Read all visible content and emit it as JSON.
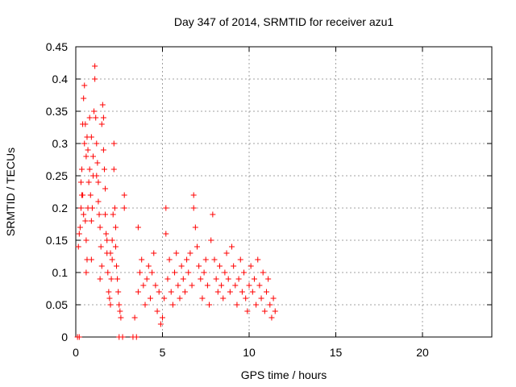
{
  "chart_data": {
    "type": "scatter",
    "title": "Day 347 of 2014, SRMTID for receiver azu1",
    "xlabel": "GPS time / hours",
    "ylabel": "SRMTID / TECUs",
    "xlim": [
      0,
      24
    ],
    "ylim": [
      0,
      0.45
    ],
    "xticks": [
      0,
      5,
      10,
      15,
      20
    ],
    "yticks": [
      0,
      0.05,
      0.1,
      0.15,
      0.2,
      0.25,
      0.3,
      0.35,
      0.4,
      0.45
    ],
    "xtick_labels": [
      "0",
      "5",
      "10",
      "15",
      "20"
    ],
    "ytick_labels": [
      "0",
      "0.05",
      "0.1",
      "0.15",
      "0.2",
      "0.25",
      "0.3",
      "0.35",
      "0.4",
      "0.45"
    ],
    "grid": true,
    "marker": "+",
    "color": "#ff0000",
    "series": [
      {
        "name": "SRMTID",
        "points": [
          [
            0.1,
            0.0
          ],
          [
            0.2,
            0.0
          ],
          [
            0.15,
            0.14
          ],
          [
            0.2,
            0.16
          ],
          [
            0.25,
            0.17
          ],
          [
            0.3,
            0.2
          ],
          [
            0.3,
            0.24
          ],
          [
            0.35,
            0.26
          ],
          [
            0.4,
            0.33
          ],
          [
            0.45,
            0.37
          ],
          [
            0.5,
            0.39
          ],
          [
            0.55,
            0.33
          ],
          [
            0.5,
            0.3
          ],
          [
            0.6,
            0.28
          ],
          [
            0.65,
            0.31
          ],
          [
            0.7,
            0.29
          ],
          [
            0.4,
            0.22
          ],
          [
            0.45,
            0.19
          ],
          [
            0.55,
            0.18
          ],
          [
            0.6,
            0.15
          ],
          [
            0.65,
            0.12
          ],
          [
            0.7,
            0.2
          ],
          [
            0.75,
            0.24
          ],
          [
            0.8,
            0.26
          ],
          [
            0.85,
            0.22
          ],
          [
            0.9,
            0.18
          ],
          [
            0.95,
            0.2
          ],
          [
            1.0,
            0.25
          ],
          [
            1.05,
            0.35
          ],
          [
            1.1,
            0.4
          ],
          [
            1.1,
            0.42
          ],
          [
            1.15,
            0.34
          ],
          [
            1.2,
            0.3
          ],
          [
            1.25,
            0.27
          ],
          [
            1.3,
            0.24
          ],
          [
            1.3,
            0.21
          ],
          [
            1.35,
            0.19
          ],
          [
            1.4,
            0.17
          ],
          [
            1.45,
            0.14
          ],
          [
            1.5,
            0.11
          ],
          [
            1.5,
            0.33
          ],
          [
            1.55,
            0.36
          ],
          [
            1.6,
            0.34
          ],
          [
            1.6,
            0.29
          ],
          [
            1.65,
            0.26
          ],
          [
            1.7,
            0.23
          ],
          [
            1.7,
            0.19
          ],
          [
            1.75,
            0.16
          ],
          [
            1.8,
            0.13
          ],
          [
            1.85,
            0.1
          ],
          [
            1.9,
            0.07
          ],
          [
            1.95,
            0.06
          ],
          [
            2.0,
            0.05
          ],
          [
            2.05,
            0.09
          ],
          [
            2.1,
            0.12
          ],
          [
            2.1,
            0.15
          ],
          [
            2.15,
            0.19
          ],
          [
            2.2,
            0.26
          ],
          [
            2.2,
            0.3
          ],
          [
            2.25,
            0.2
          ],
          [
            2.3,
            0.17
          ],
          [
            2.3,
            0.14
          ],
          [
            2.35,
            0.11
          ],
          [
            2.4,
            0.09
          ],
          [
            2.45,
            0.07
          ],
          [
            2.5,
            0.05
          ],
          [
            2.55,
            0.04
          ],
          [
            2.6,
            0.03
          ],
          [
            2.5,
            0.0
          ],
          [
            2.7,
            0.0
          ],
          [
            2.8,
            0.22
          ],
          [
            2.8,
            0.2
          ],
          [
            0.8,
            0.34
          ],
          [
            0.9,
            0.31
          ],
          [
            1.0,
            0.28
          ],
          [
            1.2,
            0.25
          ],
          [
            0.35,
            0.22
          ],
          [
            0.6,
            0.1
          ],
          [
            0.9,
            0.12
          ],
          [
            1.4,
            0.09
          ],
          [
            1.8,
            0.15
          ],
          [
            2.0,
            0.13
          ],
          [
            3.3,
            0.0
          ],
          [
            3.5,
            0.0
          ],
          [
            3.6,
            0.17
          ],
          [
            3.4,
            0.03
          ],
          [
            3.6,
            0.07
          ],
          [
            3.7,
            0.1
          ],
          [
            3.8,
            0.12
          ],
          [
            3.9,
            0.08
          ],
          [
            4.0,
            0.05
          ],
          [
            4.1,
            0.09
          ],
          [
            4.2,
            0.11
          ],
          [
            4.3,
            0.06
          ],
          [
            4.4,
            0.1
          ],
          [
            4.5,
            0.13
          ],
          [
            4.6,
            0.08
          ],
          [
            4.7,
            0.04
          ],
          [
            4.8,
            0.07
          ],
          [
            4.9,
            0.02
          ],
          [
            5.0,
            0.03
          ],
          [
            5.1,
            0.06
          ],
          [
            5.2,
            0.2
          ],
          [
            5.2,
            0.16
          ],
          [
            5.3,
            0.09
          ],
          [
            5.4,
            0.12
          ],
          [
            5.5,
            0.07
          ],
          [
            5.6,
            0.05
          ],
          [
            5.7,
            0.1
          ],
          [
            5.8,
            0.13
          ],
          [
            5.9,
            0.08
          ],
          [
            6.0,
            0.06
          ],
          [
            6.1,
            0.11
          ],
          [
            6.2,
            0.09
          ],
          [
            6.3,
            0.07
          ],
          [
            6.4,
            0.12
          ],
          [
            6.5,
            0.1
          ],
          [
            6.6,
            0.13
          ],
          [
            6.7,
            0.08
          ],
          [
            6.8,
            0.22
          ],
          [
            6.8,
            0.2
          ],
          [
            6.9,
            0.17
          ],
          [
            7.0,
            0.14
          ],
          [
            7.1,
            0.11
          ],
          [
            7.2,
            0.09
          ],
          [
            7.3,
            0.06
          ],
          [
            7.4,
            0.1
          ],
          [
            7.5,
            0.12
          ],
          [
            7.6,
            0.08
          ],
          [
            7.7,
            0.05
          ],
          [
            7.8,
            0.15
          ],
          [
            7.9,
            0.19
          ],
          [
            8.0,
            0.12
          ],
          [
            8.1,
            0.09
          ],
          [
            8.2,
            0.07
          ],
          [
            8.3,
            0.11
          ],
          [
            8.4,
            0.08
          ],
          [
            8.5,
            0.06
          ],
          [
            8.6,
            0.1
          ],
          [
            8.7,
            0.13
          ],
          [
            8.8,
            0.09
          ],
          [
            8.9,
            0.07
          ],
          [
            9.0,
            0.14
          ],
          [
            9.1,
            0.11
          ],
          [
            9.2,
            0.08
          ],
          [
            9.3,
            0.05
          ],
          [
            9.4,
            0.09
          ],
          [
            9.5,
            0.12
          ],
          [
            9.6,
            0.07
          ],
          [
            9.7,
            0.1
          ],
          [
            9.8,
            0.06
          ],
          [
            9.9,
            0.04
          ],
          [
            10.0,
            0.08
          ],
          [
            10.1,
            0.11
          ],
          [
            10.2,
            0.07
          ],
          [
            10.3,
            0.09
          ],
          [
            10.4,
            0.05
          ],
          [
            10.5,
            0.12
          ],
          [
            10.6,
            0.08
          ],
          [
            10.7,
            0.06
          ],
          [
            10.8,
            0.1
          ],
          [
            10.9,
            0.04
          ],
          [
            11.0,
            0.07
          ],
          [
            11.1,
            0.09
          ],
          [
            11.2,
            0.05
          ],
          [
            11.3,
            0.03
          ],
          [
            11.4,
            0.06
          ],
          [
            11.5,
            0.04
          ]
        ]
      }
    ]
  }
}
